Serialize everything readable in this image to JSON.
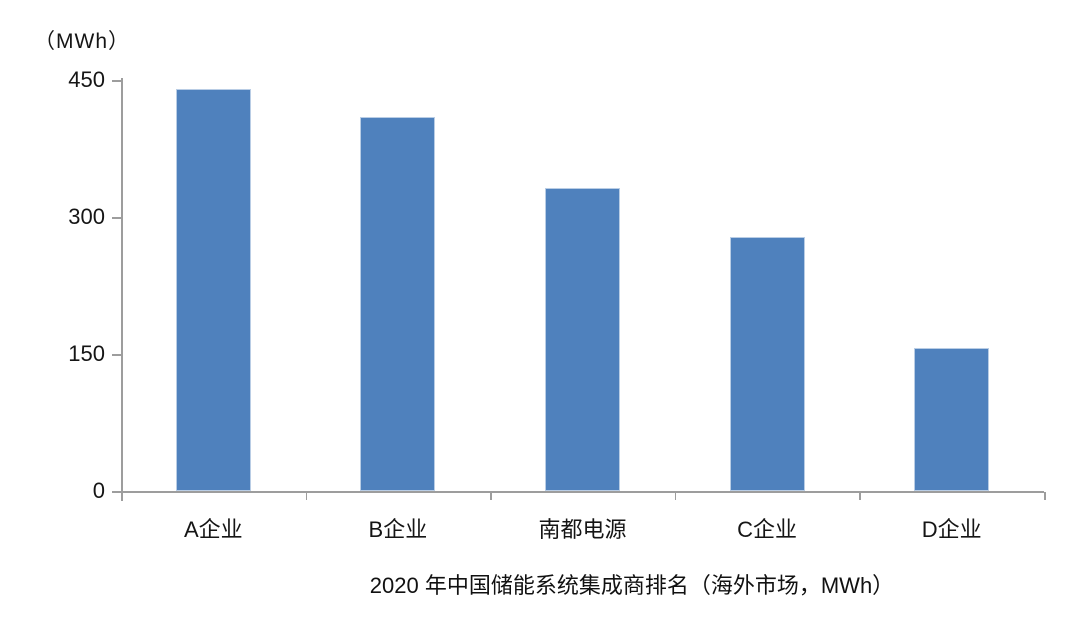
{
  "page": {
    "background_color": "#ffffff"
  },
  "chart_data": {
    "type": "bar",
    "title": "2020 年中国储能系统集成商排名（海外市场，MWh）",
    "unit_label": "（MWh）",
    "categories": [
      "A企业",
      "B企业",
      "南都电源",
      "C企业",
      "D企业"
    ],
    "values": [
      440,
      410,
      332,
      278,
      157
    ],
    "xlabel": "",
    "ylabel": "（MWh）",
    "ylim": [
      0,
      450
    ],
    "yticks": [
      0,
      150,
      300,
      450
    ],
    "grid": false,
    "legend": "none",
    "bar_color": "#4F81BD",
    "bar_border_color": "#B9CDE5",
    "axis_color": "#9D9D9D",
    "text_color": "#151515"
  }
}
